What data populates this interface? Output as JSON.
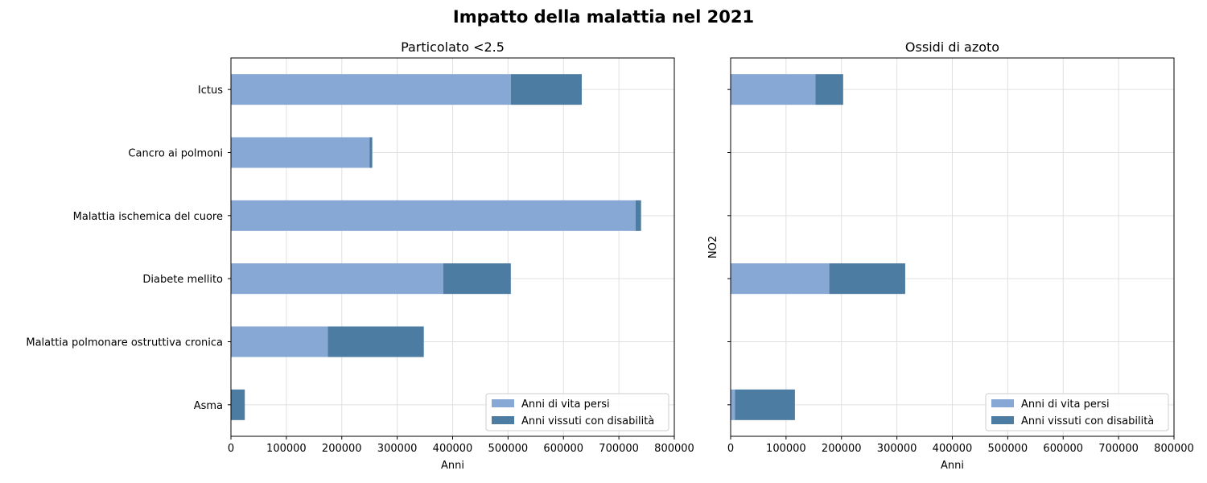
{
  "figure_title": "Impatto della malattia nel 2021",
  "colors": {
    "yll": "#87a7d5",
    "yld": "#4d7ca3"
  },
  "chart_data": [
    {
      "type": "bar",
      "orientation": "horizontal",
      "stacked": true,
      "title": "Particolato <2.5",
      "xlabel": "Anni",
      "ylabel": "",
      "xlim": [
        0,
        800000
      ],
      "xticks": [
        "0",
        "100000",
        "200000",
        "300000",
        "400000",
        "500000",
        "600000",
        "700000",
        "800000"
      ],
      "grid": true,
      "legend_position": "lower right",
      "categories": [
        "Ictus",
        "Cancro ai polmoni",
        "Malattia ischemica del cuore",
        "Diabete mellito",
        "Malattia polmonare ostruttiva cronica",
        "Asma"
      ],
      "category_labels_shown": true,
      "series": [
        {
          "name": "Anni di vita persi",
          "values": [
            505000,
            250000,
            730000,
            383000,
            175000,
            0
          ]
        },
        {
          "name": "Anni vissuti con disabilità",
          "values": [
            128000,
            5000,
            10000,
            122000,
            173000,
            25000
          ]
        }
      ]
    },
    {
      "type": "bar",
      "orientation": "horizontal",
      "stacked": true,
      "title": "Ossidi di azoto",
      "xlabel": "Anni",
      "ylabel": "NO2",
      "xlim": [
        0,
        800000
      ],
      "xticks": [
        "0",
        "100000",
        "200000",
        "300000",
        "400000",
        "500000",
        "600000",
        "700000",
        "800000"
      ],
      "grid": true,
      "legend_position": "lower right",
      "categories": [
        "Ictus",
        "Cancro ai polmoni",
        "Malattia ischemica del cuore",
        "Diabete mellito",
        "Malattia polmonare ostruttiva cronica",
        "Asma"
      ],
      "category_labels_shown": false,
      "series": [
        {
          "name": "Anni di vita persi",
          "values": [
            153000,
            0,
            0,
            178000,
            0,
            8000
          ]
        },
        {
          "name": "Anni vissuti con disabilità",
          "values": [
            50000,
            0,
            0,
            137000,
            0,
            108000
          ]
        }
      ]
    }
  ]
}
